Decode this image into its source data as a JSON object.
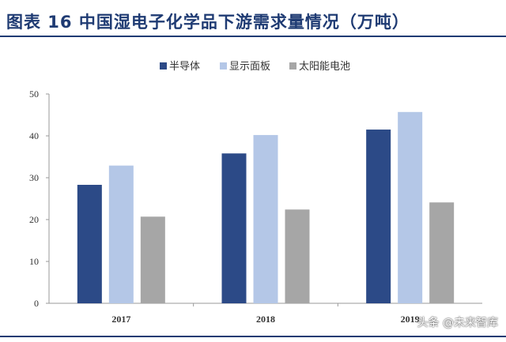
{
  "title": "图表 16   中国湿电子化学品下游需求量情况（万吨）",
  "watermark": "头条 @未来智库",
  "colors": {
    "accent": "#1f3b73"
  },
  "chart_data": {
    "type": "bar",
    "categories": [
      "2017",
      "2018",
      "2019"
    ],
    "series": [
      {
        "name": "半导体",
        "values": [
          28.3,
          35.8,
          41.5
        ],
        "color": "#2c4a87"
      },
      {
        "name": "显示面板",
        "values": [
          32.9,
          40.2,
          45.7
        ],
        "color": "#b4c7e7"
      },
      {
        "name": "太阳能电池",
        "values": [
          20.7,
          22.4,
          24.1
        ],
        "color": "#a6a6a6"
      }
    ],
    "ylim": [
      0,
      50
    ],
    "yticks": [
      0,
      10,
      20,
      30,
      40,
      50
    ],
    "legend": "top-center",
    "grid": false
  }
}
